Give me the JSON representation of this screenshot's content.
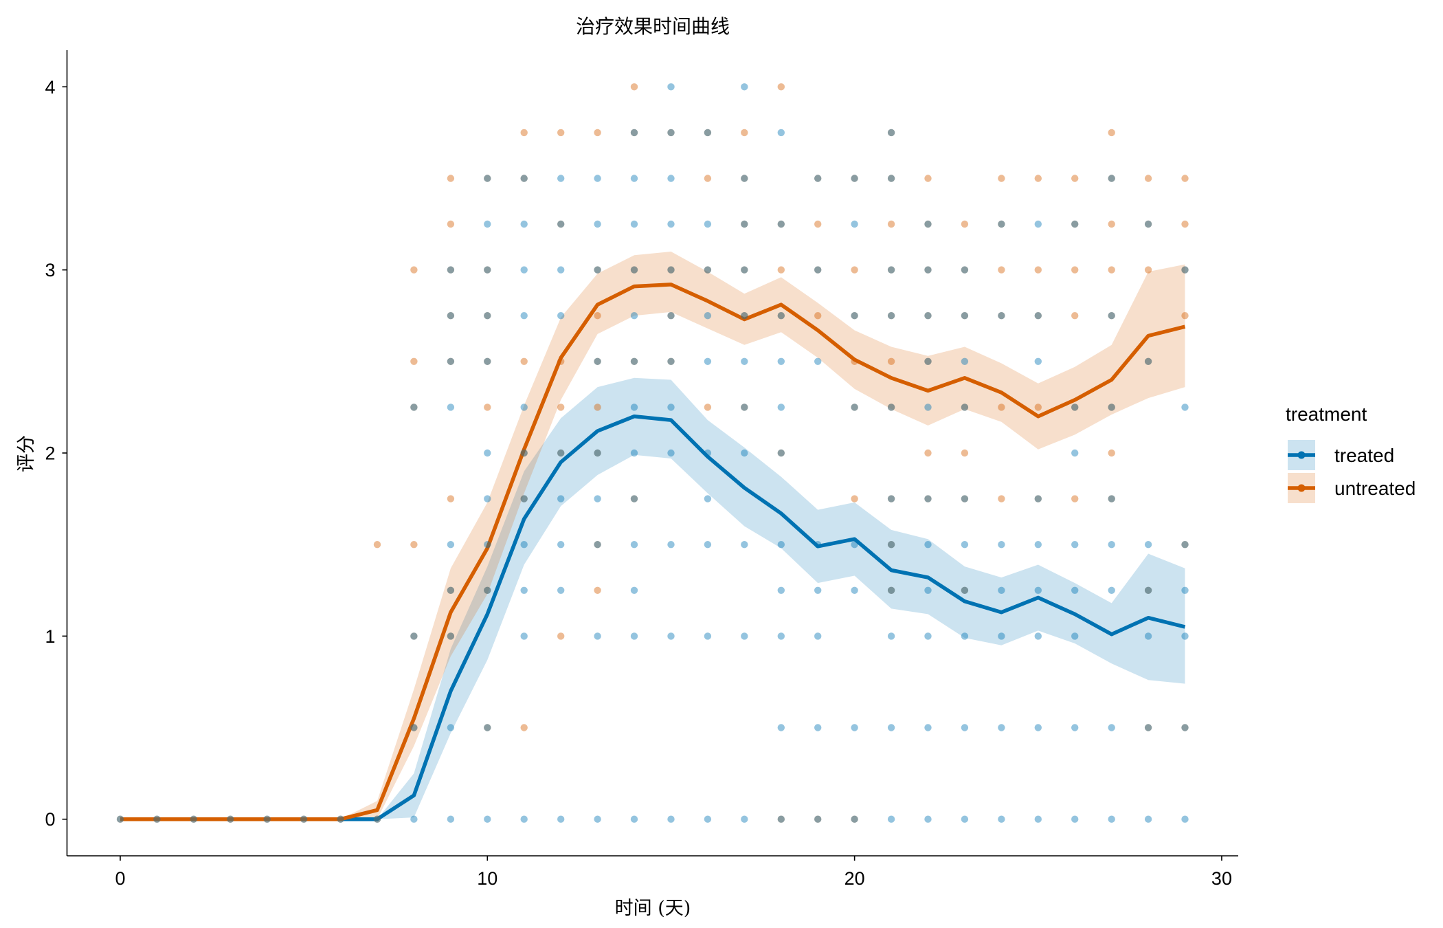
{
  "chart_data": {
    "type": "line",
    "title": "治疗效果时间曲线",
    "xlabel": "时间 (天)",
    "ylabel": "评分",
    "xlim": [
      -1.45,
      30.45
    ],
    "ylim": [
      -0.2,
      4.2
    ],
    "x_ticks": [
      0,
      10,
      20,
      30
    ],
    "y_ticks": [
      0,
      1,
      2,
      3,
      4
    ],
    "grid": false,
    "legend": {
      "title": "treatment",
      "position": "right"
    },
    "x": [
      0,
      1,
      2,
      3,
      4,
      5,
      6,
      7,
      8,
      9,
      10,
      11,
      12,
      13,
      14,
      15,
      16,
      17,
      18,
      19,
      20,
      21,
      22,
      23,
      24,
      25,
      26,
      27,
      28,
      29
    ],
    "series": [
      {
        "name": "treated",
        "color": "#0072B2",
        "mean": [
          0,
          0,
          0,
          0,
          0,
          0,
          0,
          0,
          0.13,
          0.7,
          1.12,
          1.64,
          1.95,
          2.12,
          2.2,
          2.18,
          1.98,
          1.81,
          1.67,
          1.49,
          1.53,
          1.36,
          1.32,
          1.19,
          1.13,
          1.21,
          1.12,
          1.01,
          1.1,
          1.05
        ],
        "lower": [
          0,
          0,
          0,
          0,
          0,
          0,
          0,
          0,
          0.01,
          0.47,
          0.87,
          1.39,
          1.71,
          1.88,
          1.99,
          1.97,
          1.78,
          1.6,
          1.48,
          1.29,
          1.33,
          1.15,
          1.12,
          0.99,
          0.95,
          1.03,
          0.96,
          0.85,
          0.76,
          0.74
        ],
        "upper": [
          0,
          0,
          0,
          0,
          0,
          0,
          0,
          0,
          0.25,
          0.93,
          1.38,
          1.9,
          2.19,
          2.36,
          2.41,
          2.4,
          2.18,
          2.03,
          1.87,
          1.69,
          1.73,
          1.58,
          1.53,
          1.38,
          1.32,
          1.39,
          1.29,
          1.18,
          1.45,
          1.37
        ],
        "points": [
          {
            "x": 0,
            "y": [
              0
            ]
          },
          {
            "x": 1,
            "y": [
              0
            ]
          },
          {
            "x": 2,
            "y": [
              0
            ]
          },
          {
            "x": 3,
            "y": [
              0
            ]
          },
          {
            "x": 4,
            "y": [
              0
            ]
          },
          {
            "x": 5,
            "y": [
              0
            ]
          },
          {
            "x": 6,
            "y": [
              0
            ]
          },
          {
            "x": 7,
            "y": [
              0
            ]
          },
          {
            "x": 8,
            "y": [
              0,
              0.5,
              1,
              2.25
            ]
          },
          {
            "x": 9,
            "y": [
              0,
              0.5,
              1,
              1.25,
              1.5,
              2.25,
              2.5,
              2.75,
              3
            ]
          },
          {
            "x": 10,
            "y": [
              0,
              0.5,
              1.25,
              1.5,
              1.75,
              2,
              2.5,
              2.75,
              3,
              3.25,
              3.5
            ]
          },
          {
            "x": 11,
            "y": [
              0,
              1,
              1.25,
              1.5,
              1.75,
              2,
              2.25,
              2.75,
              3,
              3.25,
              3.5
            ]
          },
          {
            "x": 12,
            "y": [
              0,
              1.25,
              1.5,
              1.75,
              2,
              2.75,
              3,
              3.25,
              3.5
            ]
          },
          {
            "x": 13,
            "y": [
              0,
              1,
              1.5,
              1.75,
              2,
              2.5,
              3,
              3.25,
              3.5
            ]
          },
          {
            "x": 14,
            "y": [
              0,
              1,
              1.25,
              1.5,
              1.75,
              2,
              2.25,
              2.5,
              2.75,
              3,
              3.25,
              3.5,
              3.75
            ]
          },
          {
            "x": 15,
            "y": [
              0,
              1,
              1.5,
              2,
              2.25,
              2.5,
              2.75,
              3,
              3.25,
              3.5,
              3.75,
              4
            ]
          },
          {
            "x": 16,
            "y": [
              0,
              1,
              1.5,
              1.75,
              2,
              2.5,
              2.75,
              3,
              3.25,
              3.75
            ]
          },
          {
            "x": 17,
            "y": [
              0,
              1,
              1.5,
              2,
              2.25,
              2.5,
              2.75,
              3,
              3.25,
              3.5,
              4
            ]
          },
          {
            "x": 18,
            "y": [
              0,
              0.5,
              1,
              1.25,
              1.5,
              2,
              2.25,
              2.5,
              2.75,
              3.25,
              3.75
            ]
          },
          {
            "x": 19,
            "y": [
              0,
              0.5,
              1,
              1.25,
              1.5,
              2.5,
              3,
              3.5
            ]
          },
          {
            "x": 20,
            "y": [
              0,
              0.5,
              1.25,
              1.5,
              2.25,
              2.75,
              3.25,
              3.5
            ]
          },
          {
            "x": 21,
            "y": [
              0,
              0.5,
              1,
              1.25,
              1.5,
              1.75,
              2.25,
              2.75,
              3,
              3.5,
              3.75
            ]
          },
          {
            "x": 22,
            "y": [
              0,
              0.5,
              1,
              1.25,
              1.5,
              1.75,
              2.25,
              2.5,
              2.75,
              3,
              3.25
            ]
          },
          {
            "x": 23,
            "y": [
              0,
              0.5,
              1,
              1.25,
              1.5,
              1.75,
              2.25,
              2.5,
              2.75,
              3
            ]
          },
          {
            "x": 24,
            "y": [
              0,
              0.5,
              1,
              1.25,
              1.5,
              2.75,
              3.25
            ]
          },
          {
            "x": 25,
            "y": [
              0,
              0.5,
              1,
              1.25,
              1.5,
              1.75,
              2.5,
              2.75,
              3.25
            ]
          },
          {
            "x": 26,
            "y": [
              0,
              0.5,
              1,
              1.25,
              1.5,
              2,
              2.25,
              3.25
            ]
          },
          {
            "x": 27,
            "y": [
              0,
              0.5,
              1.25,
              1.5,
              1.75,
              2.25,
              2.75,
              3.5
            ]
          },
          {
            "x": 28,
            "y": [
              0,
              0.5,
              1,
              1.25,
              1.5,
              2.5,
              3.25
            ]
          },
          {
            "x": 29,
            "y": [
              0,
              0.5,
              1,
              1.25,
              1.5,
              2.25,
              3
            ]
          }
        ]
      },
      {
        "name": "untreated",
        "color": "#D55E00",
        "mean": [
          0,
          0,
          0,
          0,
          0,
          0,
          0,
          0.05,
          0.55,
          1.13,
          1.48,
          2.02,
          2.52,
          2.81,
          2.91,
          2.92,
          2.83,
          2.73,
          2.81,
          2.67,
          2.51,
          2.41,
          2.34,
          2.41,
          2.33,
          2.2,
          2.29,
          2.4,
          2.64,
          2.69
        ],
        "lower": [
          0,
          0,
          0,
          0,
          0,
          0,
          0,
          0,
          0.4,
          0.89,
          1.23,
          1.78,
          2.29,
          2.65,
          2.75,
          2.77,
          2.68,
          2.59,
          2.66,
          2.52,
          2.35,
          2.24,
          2.15,
          2.24,
          2.17,
          2.02,
          2.1,
          2.21,
          2.3,
          2.36
        ],
        "upper": [
          0,
          0,
          0,
          0,
          0,
          0,
          0,
          0.1,
          0.71,
          1.37,
          1.73,
          2.26,
          2.74,
          2.98,
          3.08,
          3.1,
          2.99,
          2.87,
          2.96,
          2.82,
          2.67,
          2.58,
          2.53,
          2.58,
          2.49,
          2.38,
          2.47,
          2.59,
          2.99,
          3.03
        ],
        "points": [
          {
            "x": 0,
            "y": [
              0
            ]
          },
          {
            "x": 1,
            "y": [
              0
            ]
          },
          {
            "x": 2,
            "y": [
              0
            ]
          },
          {
            "x": 3,
            "y": [
              0
            ]
          },
          {
            "x": 4,
            "y": [
              0
            ]
          },
          {
            "x": 5,
            "y": [
              0
            ]
          },
          {
            "x": 6,
            "y": [
              0
            ]
          },
          {
            "x": 7,
            "y": [
              0,
              1.5
            ]
          },
          {
            "x": 8,
            "y": [
              0.5,
              1,
              1.5,
              2.25,
              2.5,
              3
            ]
          },
          {
            "x": 9,
            "y": [
              1,
              1.25,
              1.75,
              2.5,
              2.75,
              3,
              3.25,
              3.5
            ]
          },
          {
            "x": 10,
            "y": [
              0.5,
              1.25,
              2.25,
              2.5,
              2.75,
              3,
              3.5
            ]
          },
          {
            "x": 11,
            "y": [
              0.5,
              1.75,
              2,
              2.5,
              3.5,
              3.75
            ]
          },
          {
            "x": 12,
            "y": [
              1,
              2,
              2.25,
              2.5,
              3.25,
              3.75
            ]
          },
          {
            "x": 13,
            "y": [
              1.25,
              1.5,
              2,
              2.25,
              2.5,
              2.75,
              3,
              3.75
            ]
          },
          {
            "x": 14,
            "y": [
              1.75,
              2.5,
              3,
              3.75,
              4
            ]
          },
          {
            "x": 15,
            "y": [
              2.5,
              2.75,
              3,
              3.75
            ]
          },
          {
            "x": 16,
            "y": [
              2.25,
              3,
              3.5,
              3.75
            ]
          },
          {
            "x": 17,
            "y": [
              2.25,
              2.75,
              3,
              3.25,
              3.5,
              3.75
            ]
          },
          {
            "x": 18,
            "y": [
              0,
              2,
              2.75,
              3,
              3.25,
              4
            ]
          },
          {
            "x": 19,
            "y": [
              0,
              2.75,
              3,
              3.25,
              3.5
            ]
          },
          {
            "x": 20,
            "y": [
              0,
              1.75,
              2.25,
              2.5,
              2.75,
              3,
              3.5
            ]
          },
          {
            "x": 21,
            "y": [
              1.25,
              1.5,
              1.75,
              2.25,
              2.5,
              2.75,
              3,
              3.25,
              3.5,
              3.75
            ]
          },
          {
            "x": 22,
            "y": [
              1.75,
              2,
              2.5,
              2.75,
              3,
              3.25,
              3.5
            ]
          },
          {
            "x": 23,
            "y": [
              1.25,
              1.75,
              2,
              2.25,
              2.75,
              3,
              3.25
            ]
          },
          {
            "x": 24,
            "y": [
              1.75,
              2.25,
              2.75,
              3,
              3.25,
              3.5
            ]
          },
          {
            "x": 25,
            "y": [
              1.75,
              2.25,
              2.75,
              3,
              3.5
            ]
          },
          {
            "x": 26,
            "y": [
              1.75,
              2.25,
              2.75,
              3,
              3.25,
              3.5
            ]
          },
          {
            "x": 27,
            "y": [
              1.75,
              2,
              2.25,
              2.75,
              3,
              3.25,
              3.5,
              3.75
            ]
          },
          {
            "x": 28,
            "y": [
              0.5,
              1.25,
              2.5,
              3,
              3.25,
              3.5
            ]
          },
          {
            "x": 29,
            "y": [
              0.5,
              1.5,
              2.75,
              3,
              3.25,
              3.5
            ]
          }
        ]
      }
    ]
  }
}
